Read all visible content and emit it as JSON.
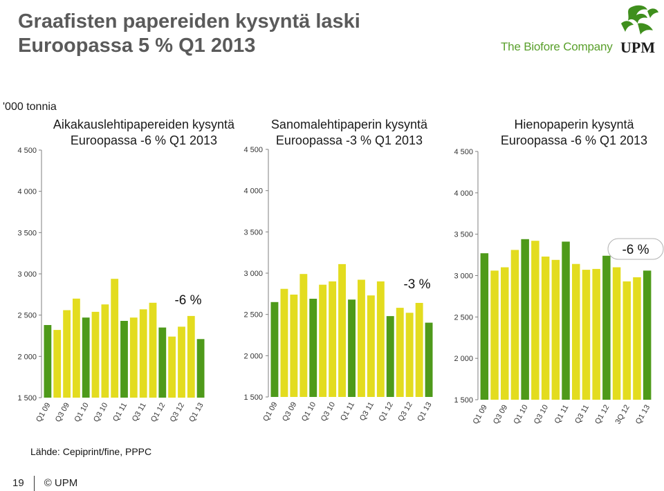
{
  "title_lines": [
    "Graafisten papereiden kysyntä laski",
    "Euroopassa 5 % Q1 2013"
  ],
  "brand": {
    "tagline": "The Biofore Company",
    "name": "UPM"
  },
  "unit_label": "'000 tonnia",
  "source": "Lähde: Cepiprint/fine, PPPC",
  "footer": {
    "page": "19",
    "copyright": "© UPM"
  },
  "colors": {
    "dark_green": "#4e9a1a",
    "light_green": "#e3dc1f",
    "axis": "#7f7f7f",
    "title": "#5a5a5a"
  },
  "chart_data": [
    {
      "type": "bar",
      "title": [
        "Aikakauslehtipapereiden kysyntä",
        "Euroopassa -6 % Q1 2013"
      ],
      "annotation": "-6 %",
      "ylim": [
        1500,
        4500
      ],
      "yticks": [
        "1 500",
        "2 000",
        "2 500",
        "3 000",
        "3 500",
        "4 000",
        "4 500"
      ],
      "categories": [
        "Q1 09",
        "",
        "Q3 09",
        "",
        "Q1 10",
        "",
        "Q3 10",
        "",
        "Q1 11",
        "",
        "Q3 11",
        "",
        "Q1 12",
        "",
        "Q3 12",
        "",
        "Q1 13"
      ],
      "values": [
        2380,
        2320,
        2560,
        2700,
        2470,
        2540,
        2630,
        2940,
        2430,
        2470,
        2570,
        2650,
        2350,
        2240,
        2360,
        2490,
        2210
      ],
      "highlight": [
        true,
        false,
        false,
        false,
        true,
        false,
        false,
        false,
        true,
        false,
        false,
        false,
        true,
        false,
        false,
        false,
        true
      ]
    },
    {
      "type": "bar",
      "title": [
        "Sanomalehtipaperin kysyntä",
        "Euroopassa -3 % Q1 2013"
      ],
      "annotation": "-3 %",
      "ylim": [
        1500,
        4500
      ],
      "yticks": [
        "1 500",
        "2 000",
        "2 500",
        "3 000",
        "3 500",
        "4 000",
        "4 500"
      ],
      "categories": [
        "Q1 09",
        "",
        "Q3 09",
        "",
        "Q1 10",
        "",
        "Q3 10",
        "",
        "Q1 11",
        "",
        "Q3 11",
        "",
        "Q1 12",
        "",
        "Q3 12",
        "",
        "Q1 13"
      ],
      "values": [
        2650,
        2810,
        2740,
        2990,
        2690,
        2860,
        2900,
        3110,
        2680,
        2920,
        2730,
        2900,
        2480,
        2580,
        2520,
        2640,
        2400
      ],
      "highlight": [
        true,
        false,
        false,
        false,
        true,
        false,
        false,
        false,
        true,
        false,
        false,
        false,
        true,
        false,
        false,
        false,
        true
      ]
    },
    {
      "type": "bar",
      "title": [
        "Hienopaperin kysyntä",
        "Euroopassa -6 % Q1 2013"
      ],
      "annotation": "-6 %",
      "ylim": [
        1500,
        4500
      ],
      "yticks": [
        "1 500",
        "2 000",
        "2 500",
        "3 000",
        "3 500",
        "4 000",
        "4 500"
      ],
      "categories": [
        "Q1 09",
        "",
        "Q3 09",
        "",
        "Q1 10",
        "",
        "Q3 10",
        "",
        "Q1 11",
        "",
        "Q3 11",
        "",
        "Q1 12",
        "",
        "3Q 12",
        "",
        "Q1 13"
      ],
      "values": [
        3270,
        3060,
        3100,
        3310,
        3440,
        3420,
        3230,
        3190,
        3410,
        3140,
        3070,
        3080,
        3240,
        3100,
        2930,
        2980,
        3060
      ],
      "highlight": [
        true,
        false,
        false,
        false,
        true,
        false,
        false,
        false,
        true,
        false,
        false,
        false,
        true,
        false,
        false,
        false,
        true
      ]
    }
  ]
}
